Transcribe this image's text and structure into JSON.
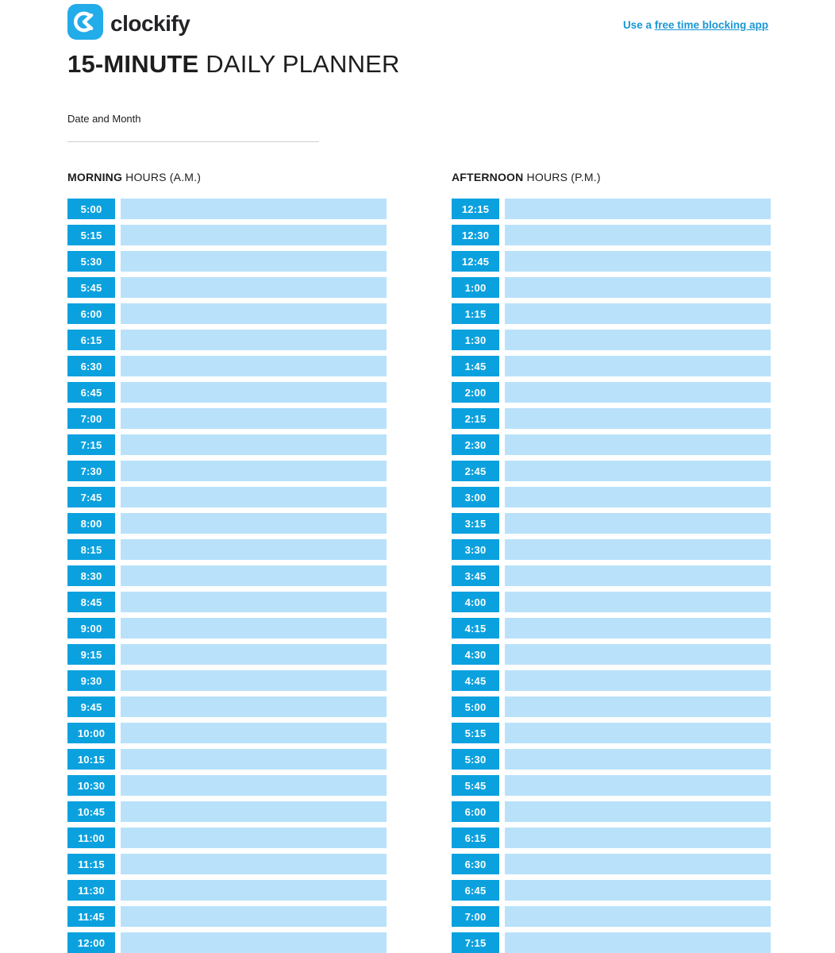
{
  "header": {
    "logo_text": "clockify",
    "link": {
      "prefix": "Use a ",
      "underlined": "free time blocking app"
    }
  },
  "title": {
    "bold": "15-MINUTE",
    "regular": " DAILY PLANNER"
  },
  "date_field": {
    "label": "Date and Month",
    "value": ""
  },
  "columns": [
    {
      "id": "morning",
      "heading_bold": "MORNING",
      "heading_rest": " HOURS (A.M.)",
      "times": [
        "5:00",
        "5:15",
        "5:30",
        "5:45",
        "6:00",
        "6:15",
        "6:30",
        "6:45",
        "7:00",
        "7:15",
        "7:30",
        "7:45",
        "8:00",
        "8:15",
        "8:30",
        "8:45",
        "9:00",
        "9:15",
        "9:30",
        "9:45",
        "10:00",
        "10:15",
        "10:30",
        "10:45",
        "11:00",
        "11:15",
        "11:30",
        "11:45",
        "12:00"
      ]
    },
    {
      "id": "afternoon",
      "heading_bold": "AFTERNOON",
      "heading_rest": " HOURS (P.M.)",
      "times": [
        "12:15",
        "12:30",
        "12:45",
        "1:00",
        "1:15",
        "1:30",
        "1:45",
        "2:00",
        "2:15",
        "2:30",
        "2:45",
        "3:00",
        "3:15",
        "3:30",
        "3:45",
        "4:00",
        "4:15",
        "4:30",
        "4:45",
        "5:00",
        "5:15",
        "5:30",
        "5:45",
        "6:00",
        "6:15",
        "6:30",
        "6:45",
        "7:00",
        "7:15"
      ]
    }
  ],
  "colors": {
    "brand_blue": "#0ba1df",
    "logo_blue": "#22ace9",
    "light_blue": "#b9e2fa",
    "link_blue": "#1a97d4",
    "text_dark": "#1d1d1f"
  }
}
